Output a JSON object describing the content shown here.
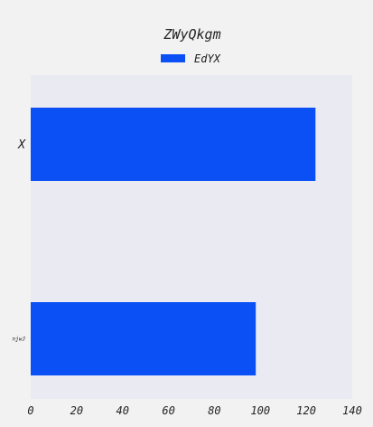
{
  "chart_data": {
    "type": "bar",
    "orientation": "horizontal",
    "title": "ZWyQkgm",
    "categories": [
      "X",
      "njwJ"
    ],
    "series": [
      {
        "name": "EdYX",
        "values": [
          124,
          98
        ],
        "color": "#0a50f5"
      }
    ],
    "xlabel": "",
    "ylabel": "",
    "xlim": [
      0,
      140
    ],
    "xticks": [
      0,
      20,
      40,
      60,
      80,
      100,
      120,
      140
    ],
    "grid": false,
    "legend": "top-center",
    "plot_background": "#eaeaf2",
    "page_background": "#f2f2f2"
  }
}
